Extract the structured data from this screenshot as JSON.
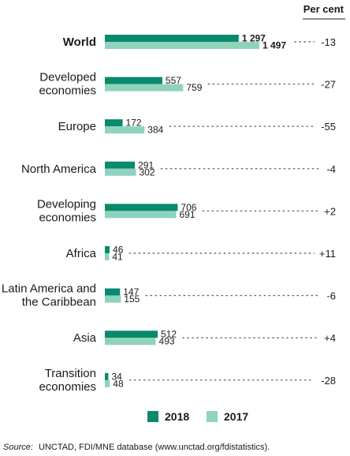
{
  "chart_data": {
    "type": "bar",
    "orientation": "horizontal",
    "categories": [
      "World",
      "Developed economies",
      "Europe",
      "North America",
      "Developing economies",
      "Africa",
      "Latin America and the Caribbean",
      "Asia",
      "Transition economies"
    ],
    "category_lines": [
      [
        "World"
      ],
      [
        "Developed",
        "economies"
      ],
      [
        "Europe"
      ],
      [
        "North America"
      ],
      [
        "Developing",
        "economies"
      ],
      [
        "Africa"
      ],
      [
        "Latin America and",
        "the Caribbean"
      ],
      [
        "Asia"
      ],
      [
        "Transition",
        "economies"
      ]
    ],
    "series": [
      {
        "name": "2018",
        "color": "#0a8a6c",
        "values": [
          1297,
          557,
          172,
          291,
          706,
          46,
          147,
          512,
          34
        ],
        "labels": [
          "1 297",
          "557",
          "172",
          "291",
          "706",
          "46",
          "147",
          "512",
          "34"
        ]
      },
      {
        "name": "2017",
        "color": "#8fd3bd",
        "values": [
          1497,
          759,
          384,
          302,
          691,
          41,
          155,
          493,
          48
        ],
        "labels": [
          "1 497",
          "759",
          "384",
          "302",
          "691",
          "41",
          "155",
          "493",
          "48"
        ]
      }
    ],
    "growth_header": "Per cent",
    "growth_labels": [
      "-13",
      "-27",
      "-55",
      "-4",
      "+2",
      "+11",
      "-6",
      "+4",
      "-28"
    ],
    "xlim": [
      0,
      1497
    ],
    "legend_placement": "bottom-center",
    "grid": false,
    "source_label": "Source:",
    "source_text": "UNCTAD, FDI/MNE database (www.unctad.org/fdistatistics)."
  }
}
